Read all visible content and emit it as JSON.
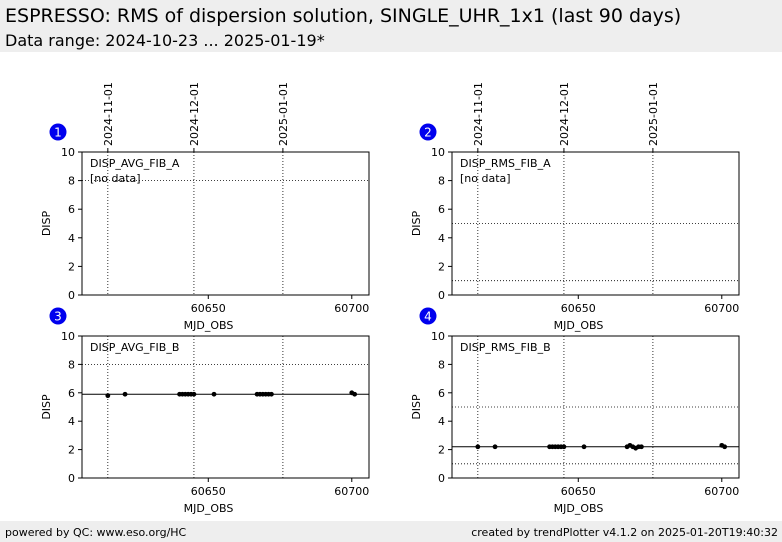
{
  "header": {
    "title": "ESPRESSO: RMS of dispersion solution, SINGLE_UHR_1x1 (last 90 days)",
    "subtitle": "Data range: 2024-10-23 ... 2025-01-19*"
  },
  "footer": {
    "left": "powered by QC: www.eso.org/HC",
    "right": "created by trendPlotter v4.1.2 on 2025-01-20T19:40:32"
  },
  "colors": {
    "background": "#ffffff",
    "band": "#eeeeee",
    "marker": "#000000",
    "badge": "#0000ee"
  },
  "date_axis": {
    "labels": [
      "2024-11-01",
      "2024-12-01",
      "2025-01-01"
    ],
    "mjd": [
      60615,
      60645,
      60676
    ]
  },
  "chart_data": [
    {
      "type": "scatter",
      "badge": "1",
      "panel_label": "DISP_AVG_FIB_A",
      "note": "[no data]",
      "xlabel": "MJD_OBS",
      "ylabel": "DISP",
      "xlim": [
        60606,
        60706
      ],
      "ylim": [
        0,
        10
      ],
      "xticks": [
        60650,
        60700
      ],
      "yticks": [
        0,
        2,
        4,
        6,
        8,
        10
      ],
      "ref_lines": {
        "solid": [],
        "dotted": [
          8
        ]
      },
      "points": []
    },
    {
      "type": "scatter",
      "badge": "2",
      "panel_label": "DISP_RMS_FIB_A",
      "note": "[no data]",
      "xlabel": "MJD_OBS",
      "ylabel": "DISP",
      "xlim": [
        60606,
        60706
      ],
      "ylim": [
        0,
        10
      ],
      "xticks": [
        60650,
        60700
      ],
      "yticks": [
        0,
        2,
        4,
        6,
        8,
        10
      ],
      "ref_lines": {
        "solid": [],
        "dotted": [
          5,
          1
        ]
      },
      "points": []
    },
    {
      "type": "scatter",
      "badge": "3",
      "panel_label": "DISP_AVG_FIB_B",
      "xlabel": "MJD_OBS",
      "ylabel": "DISP",
      "xlim": [
        60606,
        60706
      ],
      "ylim": [
        0,
        10
      ],
      "xticks": [
        60650,
        60700
      ],
      "yticks": [
        0,
        2,
        4,
        6,
        8,
        10
      ],
      "ref_lines": {
        "solid": [
          5.9
        ],
        "dotted": [
          8
        ]
      },
      "points": [
        [
          60615,
          5.8
        ],
        [
          60621,
          5.9
        ],
        [
          60640,
          5.9
        ],
        [
          60641,
          5.9
        ],
        [
          60642,
          5.9
        ],
        [
          60643,
          5.9
        ],
        [
          60644,
          5.9
        ],
        [
          60645,
          5.9
        ],
        [
          60652,
          5.9
        ],
        [
          60667,
          5.9
        ],
        [
          60668,
          5.9
        ],
        [
          60669,
          5.9
        ],
        [
          60670,
          5.9
        ],
        [
          60671,
          5.9
        ],
        [
          60672,
          5.9
        ],
        [
          60700,
          6.0
        ],
        [
          60701,
          5.9
        ]
      ]
    },
    {
      "type": "scatter",
      "badge": "4",
      "panel_label": "DISP_RMS_FIB_B",
      "xlabel": "MJD_OBS",
      "ylabel": "DISP",
      "xlim": [
        60606,
        60706
      ],
      "ylim": [
        0,
        10
      ],
      "xticks": [
        60650,
        60700
      ],
      "yticks": [
        0,
        2,
        4,
        6,
        8,
        10
      ],
      "ref_lines": {
        "solid": [
          2.2
        ],
        "dotted": [
          5,
          1
        ]
      },
      "points": [
        [
          60615,
          2.2
        ],
        [
          60621,
          2.2
        ],
        [
          60640,
          2.2
        ],
        [
          60641,
          2.2
        ],
        [
          60642,
          2.2
        ],
        [
          60643,
          2.2
        ],
        [
          60644,
          2.2
        ],
        [
          60645,
          2.2
        ],
        [
          60652,
          2.2
        ],
        [
          60667,
          2.2
        ],
        [
          60668,
          2.3
        ],
        [
          60669,
          2.2
        ],
        [
          60670,
          2.1
        ],
        [
          60671,
          2.2
        ],
        [
          60672,
          2.2
        ],
        [
          60700,
          2.3
        ],
        [
          60701,
          2.2
        ]
      ]
    }
  ]
}
